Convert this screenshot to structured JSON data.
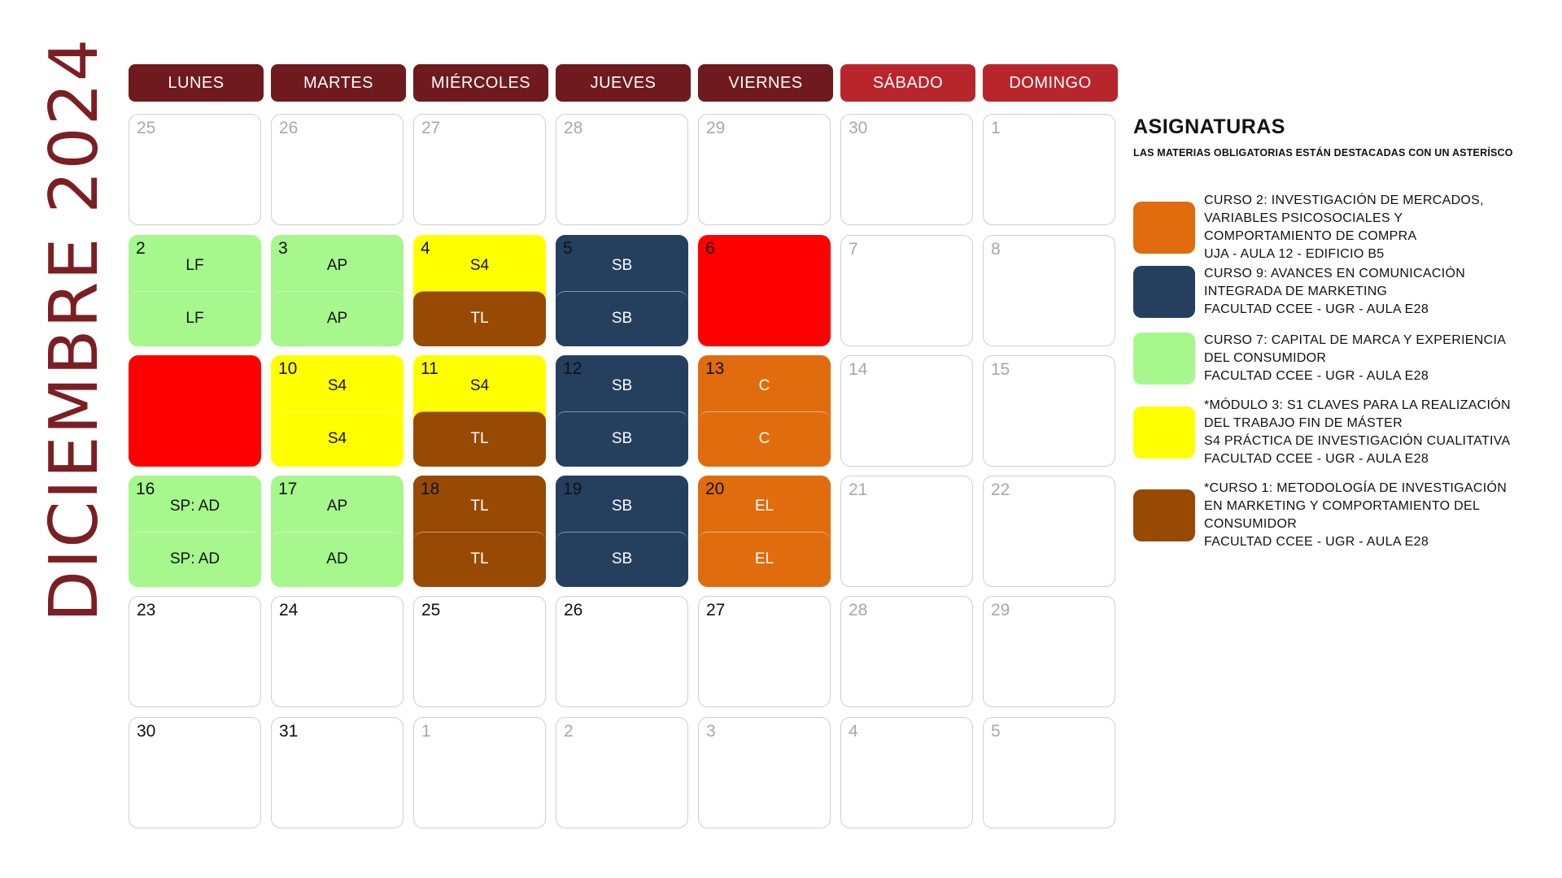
{
  "title": "DICIEMBRE 2024",
  "colors": {
    "header_weekday": "#6f1a1e",
    "header_weekend": "#b8262c",
    "orange": "#e06c0e",
    "navy": "#253f5e",
    "green": "#a6f78c",
    "yellow": "#ffff00",
    "brown": "#984a05",
    "red": "#ff0000"
  },
  "days": [
    {
      "label": "LUNES",
      "weekend": false
    },
    {
      "label": "MARTES",
      "weekend": false
    },
    {
      "label": "MIÉRCOLES",
      "weekend": false
    },
    {
      "label": "JUEVES",
      "weekend": false
    },
    {
      "label": "VIERNES",
      "weekend": false
    },
    {
      "label": "SÁBADO",
      "weekend": true
    },
    {
      "label": "DOMINGO",
      "weekend": true
    }
  ],
  "weeks": [
    [
      {
        "day": "25",
        "muted": true
      },
      {
        "day": "26",
        "muted": true
      },
      {
        "day": "27",
        "muted": true
      },
      {
        "day": "28",
        "muted": true
      },
      {
        "day": "29",
        "muted": true
      },
      {
        "day": "30",
        "muted": true
      },
      {
        "day": "1",
        "muted": true
      }
    ],
    [
      {
        "day": "2",
        "muted": false,
        "top": {
          "text": "LF",
          "color": "green"
        },
        "bottom": {
          "text": "LF",
          "color": "green"
        }
      },
      {
        "day": "3",
        "muted": false,
        "top": {
          "text": "AP",
          "color": "green"
        },
        "bottom": {
          "text": "AP",
          "color": "green"
        }
      },
      {
        "day": "4",
        "muted": false,
        "top": {
          "text": "S4",
          "color": "yellow"
        },
        "bottom": {
          "text": "TL",
          "color": "brown"
        }
      },
      {
        "day": "5",
        "muted": false,
        "top": {
          "text": "SB",
          "color": "navy"
        },
        "bottom": {
          "text": "SB",
          "color": "navy"
        }
      },
      {
        "day": "6",
        "muted": false,
        "solid": "red"
      },
      {
        "day": "7",
        "muted": true
      },
      {
        "day": "8",
        "muted": true
      }
    ],
    [
      {
        "day": "",
        "muted": false,
        "solid": "red"
      },
      {
        "day": "10",
        "muted": false,
        "top": {
          "text": "S4",
          "color": "yellow"
        },
        "bottom": {
          "text": "S4",
          "color": "yellow"
        }
      },
      {
        "day": "11",
        "muted": false,
        "top": {
          "text": "S4",
          "color": "yellow"
        },
        "bottom": {
          "text": "TL",
          "color": "brown"
        }
      },
      {
        "day": "12",
        "muted": false,
        "top": {
          "text": "SB",
          "color": "navy"
        },
        "bottom": {
          "text": "SB",
          "color": "navy"
        }
      },
      {
        "day": "13",
        "muted": false,
        "top": {
          "text": "C",
          "color": "orange"
        },
        "bottom": {
          "text": "C",
          "color": "orange"
        }
      },
      {
        "day": "14",
        "muted": true
      },
      {
        "day": "15",
        "muted": true
      }
    ],
    [
      {
        "day": "16",
        "muted": false,
        "top": {
          "text": "SP: AD",
          "color": "green"
        },
        "bottom": {
          "text": "SP: AD",
          "color": "green"
        }
      },
      {
        "day": "17",
        "muted": false,
        "top": {
          "text": "AP",
          "color": "green"
        },
        "bottom": {
          "text": "AD",
          "color": "green"
        }
      },
      {
        "day": "18",
        "muted": false,
        "top": {
          "text": "TL",
          "color": "brown"
        },
        "bottom": {
          "text": "TL",
          "color": "brown"
        }
      },
      {
        "day": "19",
        "muted": false,
        "top": {
          "text": "SB",
          "color": "navy"
        },
        "bottom": {
          "text": "SB",
          "color": "navy"
        }
      },
      {
        "day": "20",
        "muted": false,
        "top": {
          "text": "EL",
          "color": "orange"
        },
        "bottom": {
          "text": "EL",
          "color": "orange"
        }
      },
      {
        "day": "21",
        "muted": true
      },
      {
        "day": "22",
        "muted": true
      }
    ],
    [
      {
        "day": "23",
        "muted": false
      },
      {
        "day": "24",
        "muted": false
      },
      {
        "day": "25",
        "muted": false
      },
      {
        "day": "26",
        "muted": false
      },
      {
        "day": "27",
        "muted": false
      },
      {
        "day": "28",
        "muted": true
      },
      {
        "day": "29",
        "muted": true
      }
    ],
    [
      {
        "day": "30",
        "muted": false
      },
      {
        "day": "31",
        "muted": false
      },
      {
        "day": "1",
        "muted": true
      },
      {
        "day": "2",
        "muted": true
      },
      {
        "day": "3",
        "muted": true
      },
      {
        "day": "4",
        "muted": true
      },
      {
        "day": "5",
        "muted": true
      }
    ]
  ],
  "legend": {
    "title": "ASIGNATURAS",
    "subtitle": "LAS MATERIAS OBLIGATORIAS ESTÁN DESTACADAS CON UN ASTERÍSCO",
    "items": [
      {
        "color": "orange",
        "lines": [
          "CURSO 2: INVESTIGACIÓN DE MERCADOS,",
          "VARIABLES PSICOSOCIALES Y",
          "COMPORTAMIENTO DE COMPRA",
          "UJA - AULA 12 - EDIFICIO B5"
        ]
      },
      {
        "color": "navy",
        "lines": [
          "CURSO 9: AVANCES EN COMUNICACIÓN",
          "INTEGRADA DE MARKETING",
          "FACULTAD CCEE - UGR - AULA E28"
        ]
      },
      {
        "color": "green",
        "lines": [
          "CURSO 7: CAPITAL DE MARCA Y EXPERIENCIA",
          "DEL CONSUMIDOR",
          "FACULTAD CCEE - UGR - AULA E28"
        ]
      },
      {
        "color": "yellow",
        "lines": [
          "*MÓDULO 3: S1 CLAVES PARA LA REALIZACIÓN",
          "DEL TRABAJO FIN DE MÁSTER",
          "S4 PRÁCTICA DE INVESTIGACIÓN CUALITATIVA",
          "FACULTAD CCEE - UGR - AULA E28"
        ]
      },
      {
        "color": "brown",
        "lines": [
          "*CURSO 1: METODOLOGÍA DE INVESTIGACIÓN",
          "EN MARKETING Y COMPORTAMIENTO DEL",
          "CONSUMIDOR",
          "FACULTAD CCEE - UGR - AULA E28"
        ]
      }
    ]
  }
}
